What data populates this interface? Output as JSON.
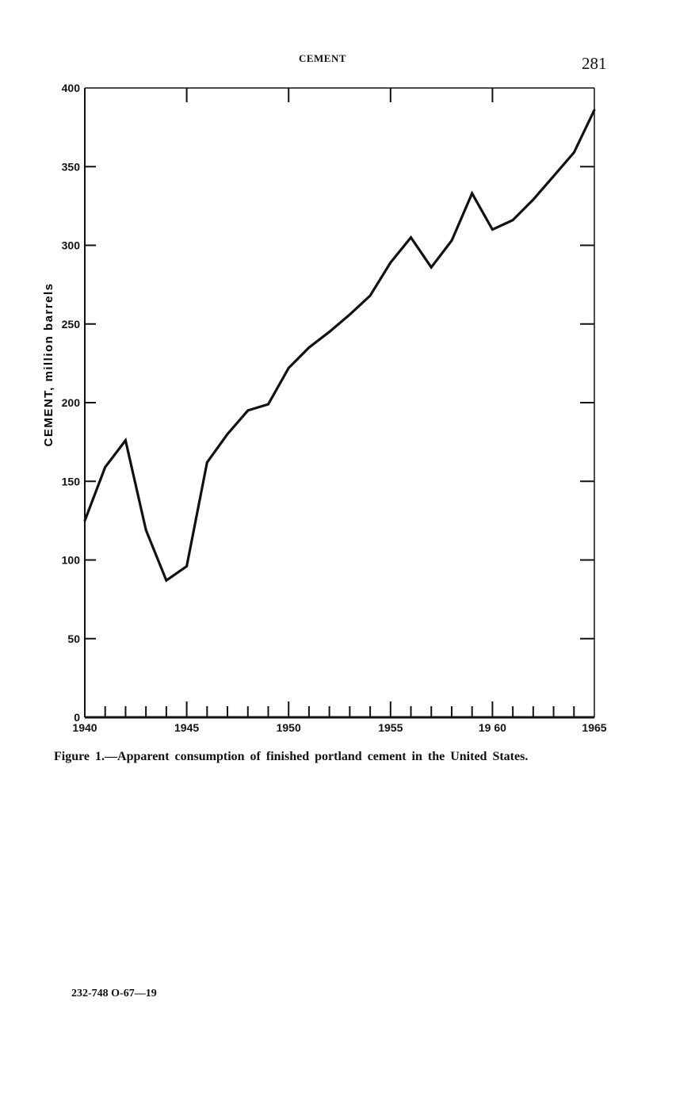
{
  "page": {
    "running_head": "CEMENT",
    "page_number": "281",
    "caption": "Figure 1.—Apparent consumption of finished portland cement in the United States.",
    "footer_code": "232-748 O-67—19"
  },
  "chart_data": {
    "type": "line",
    "title": "",
    "xlabel": "",
    "ylabel": "CEMENT, million barrels",
    "xlim": [
      1940,
      1965
    ],
    "ylim": [
      0,
      400
    ],
    "x_ticks": [
      1940,
      1945,
      1950,
      1955,
      1960,
      1965
    ],
    "x_tick_labels": [
      "1940",
      "1945",
      "1950",
      "1955",
      "19 60",
      "1965"
    ],
    "y_ticks": [
      0,
      50,
      100,
      150,
      200,
      250,
      300,
      350,
      400
    ],
    "y_tick_labels": [
      "0",
      "50",
      "100",
      "150",
      "200",
      "250",
      "300",
      "350",
      "400"
    ],
    "grid": false,
    "line_color": "#111111",
    "series": [
      {
        "x": [
          1940,
          1941,
          1942,
          1943,
          1944,
          1945,
          1946,
          1947,
          1948,
          1949,
          1950,
          1951,
          1952,
          1953,
          1954,
          1955,
          1956,
          1957,
          1958,
          1959,
          1960,
          1961,
          1962,
          1963,
          1964,
          1965
        ],
        "values": [
          125,
          159,
          176,
          119,
          87,
          96,
          162,
          180,
          195,
          199,
          222,
          235,
          245,
          256,
          268,
          289,
          305,
          286,
          303,
          333,
          310,
          316,
          329,
          344,
          359,
          386
        ]
      }
    ]
  }
}
